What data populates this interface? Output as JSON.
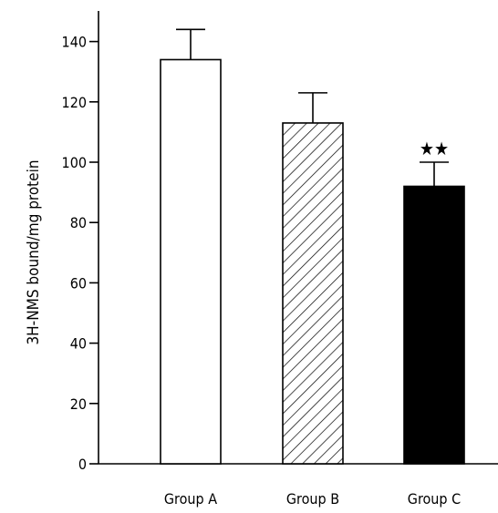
{
  "chart_data": {
    "type": "bar",
    "title": "",
    "xlabel": "",
    "ylabel": "3H-NMS bound/mg protein",
    "categories": [
      "Group A",
      "Group B",
      "Group C"
    ],
    "values": [
      134,
      113,
      92
    ],
    "error_bars": [
      10,
      10,
      8
    ],
    "bar_fills": [
      "white",
      "hatched",
      "black"
    ],
    "annotations": [
      {
        "category": "Group C",
        "text": "★★"
      }
    ],
    "ylim": [
      0,
      150
    ],
    "yticks": [
      0,
      20,
      40,
      60,
      80,
      100,
      120,
      140
    ],
    "grid": false,
    "legend": "none"
  }
}
